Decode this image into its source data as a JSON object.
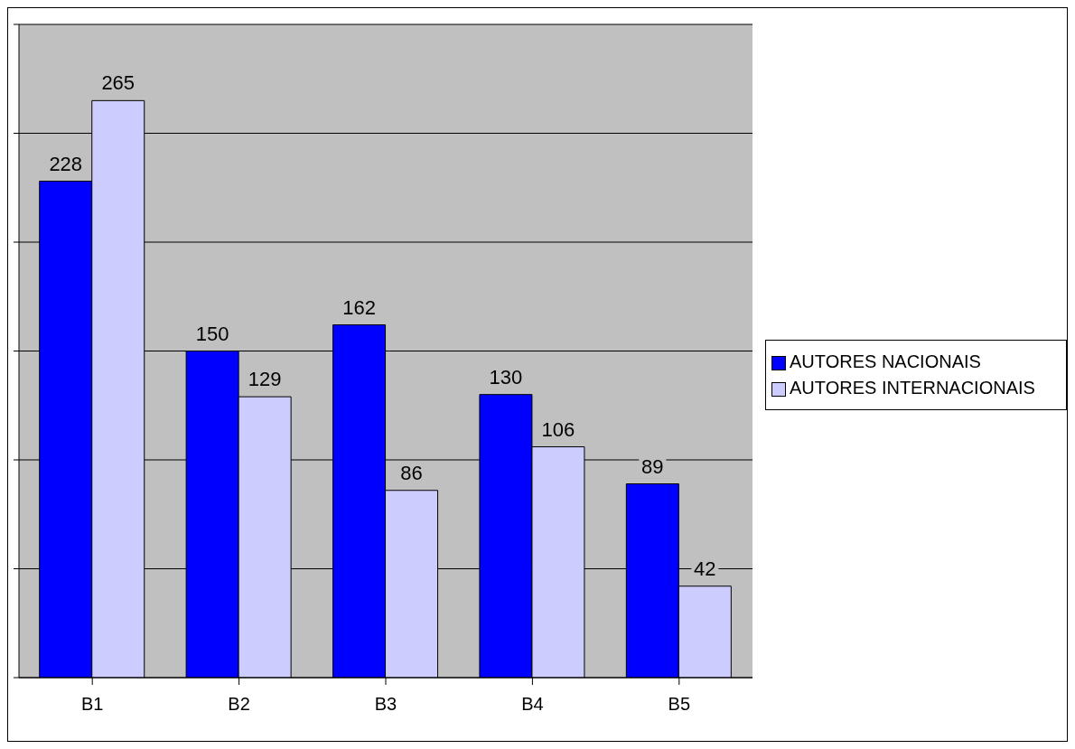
{
  "chart_data": {
    "type": "bar",
    "categories": [
      "B1",
      "B2",
      "B3",
      "B4",
      "B5"
    ],
    "series": [
      {
        "name": "AUTORES NACIONAIS",
        "color": "#0000ff",
        "values": [
          228,
          150,
          162,
          130,
          89
        ]
      },
      {
        "name": "AUTORES INTERNACIONAIS",
        "color": "#ccccff",
        "values": [
          265,
          129,
          86,
          106,
          42
        ]
      }
    ],
    "ylim": [
      0,
      300
    ],
    "yticks": [
      {
        "value": 0,
        "label": null
      },
      {
        "value": 50,
        "label": null
      },
      {
        "value": 100,
        "label": null
      },
      {
        "value": 150,
        "label": null
      },
      {
        "value": 200,
        "label": null
      },
      {
        "value": 250,
        "label": null
      },
      {
        "value": 300,
        "label": null
      }
    ],
    "tick_labels": "x",
    "grid": "y",
    "legend": "right",
    "data_labels": true
  }
}
